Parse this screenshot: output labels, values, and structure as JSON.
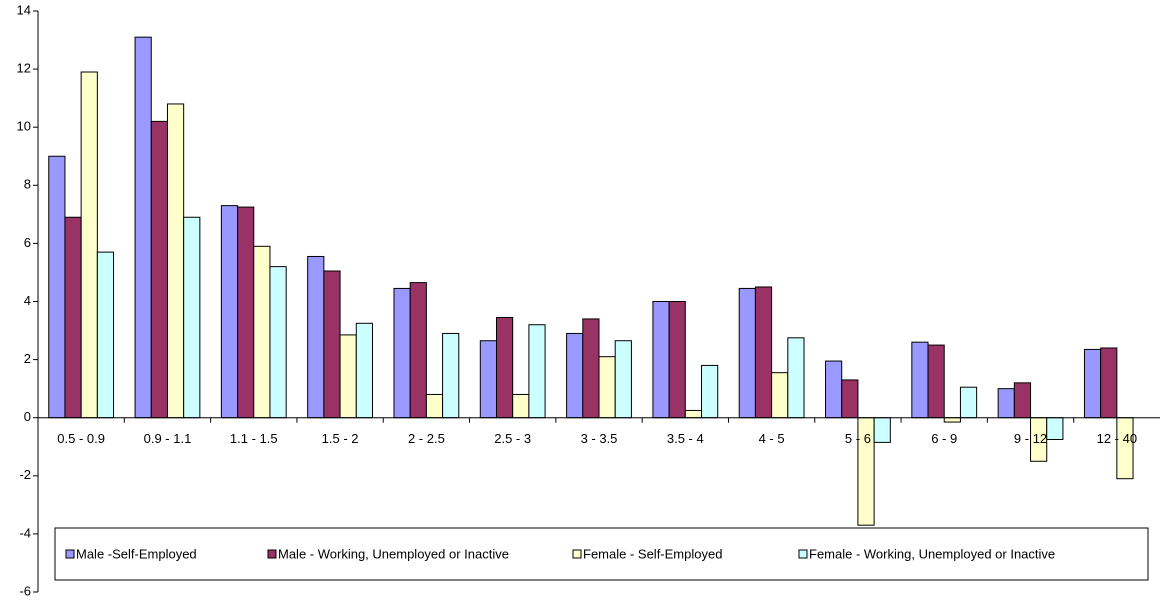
{
  "chart_data": {
    "type": "bar",
    "categories": [
      "0.5 - 0.9",
      "0.9 - 1.1",
      "1.1 - 1.5",
      "1.5 - 2",
      "2 - 2.5",
      "2.5 - 3",
      "3 - 3.5",
      "3.5 - 4",
      "4 - 5",
      "5 - 6",
      "6 - 9",
      "9 - 12",
      "12 - 40"
    ],
    "series": [
      {
        "name": "Male -Self-Employed",
        "color": "#9999ff",
        "values": [
          9.0,
          13.1,
          7.3,
          5.55,
          4.45,
          2.65,
          2.9,
          4.0,
          4.45,
          1.95,
          2.6,
          1.0,
          2.35
        ]
      },
      {
        "name": "Male - Working, Unemployed or Inactive",
        "color": "#993366",
        "values": [
          6.9,
          10.2,
          7.25,
          5.05,
          4.65,
          3.45,
          3.4,
          4.0,
          4.5,
          1.3,
          2.5,
          1.2,
          2.4
        ]
      },
      {
        "name": "Female - Self-Employed",
        "color": "#ffffcc",
        "values": [
          11.9,
          10.8,
          5.9,
          2.85,
          0.8,
          0.8,
          2.1,
          0.25,
          1.55,
          -3.7,
          -0.15,
          -1.5,
          -2.1
        ]
      },
      {
        "name": "Female - Working, Unemployed or Inactive",
        "color": "#ccffff",
        "values": [
          5.7,
          6.9,
          5.2,
          3.25,
          2.9,
          3.2,
          2.65,
          1.8,
          2.75,
          -0.85,
          1.05,
          -0.75,
          0
        ]
      }
    ],
    "ylim": [
      -6,
      14
    ],
    "yticks": [
      -6,
      -4,
      -2,
      0,
      2,
      4,
      6,
      8,
      10,
      12,
      14
    ],
    "legend": "bottom"
  }
}
